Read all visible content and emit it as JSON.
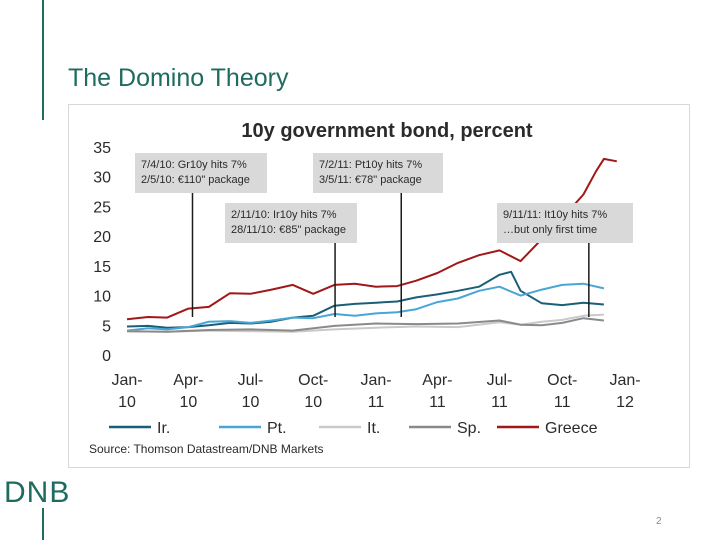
{
  "slide": {
    "title": "The Domino Theory",
    "logo": "DNB",
    "page_number": "2"
  },
  "colors": {
    "accent": "#1f6b5f",
    "ir": "#1a5f78",
    "pt": "#49a6d4",
    "it": "#c9c9c9",
    "sp": "#8a8a8a",
    "greece": "#a01818",
    "annotation_bg": "#d9d9d9"
  },
  "chart_data": {
    "type": "line",
    "title": "10y government bond, percent",
    "source": "Source: Thomson Datastream/DNB Markets",
    "ylim": [
      0,
      35
    ],
    "yticks": [
      0,
      5,
      10,
      15,
      20,
      25,
      30,
      35
    ],
    "xlim": [
      "2010-01-01",
      "2012-01-01"
    ],
    "xticks": [
      {
        "date": "2010-01-01",
        "l1": "Jan-",
        "l2": "10"
      },
      {
        "date": "2010-04-01",
        "l1": "Apr-",
        "l2": "10"
      },
      {
        "date": "2010-07-01",
        "l1": "Jul-",
        "l2": "10"
      },
      {
        "date": "2010-10-01",
        "l1": "Oct-",
        "l2": "10"
      },
      {
        "date": "2011-01-01",
        "l1": "Jan-",
        "l2": "11"
      },
      {
        "date": "2011-04-01",
        "l1": "Apr-",
        "l2": "11"
      },
      {
        "date": "2011-07-01",
        "l1": "Jul-",
        "l2": "11"
      },
      {
        "date": "2011-10-01",
        "l1": "Oct-",
        "l2": "11"
      },
      {
        "date": "2012-01-01",
        "l1": "Jan-",
        "l2": "12"
      }
    ],
    "grid": false,
    "legend_position": "bottom",
    "series": [
      {
        "name": "Ir.",
        "color": "#1a5f78",
        "points": [
          [
            "2010-01-01",
            4.8
          ],
          [
            "2010-02-01",
            4.9
          ],
          [
            "2010-03-01",
            4.6
          ],
          [
            "2010-04-01",
            4.7
          ],
          [
            "2010-05-01",
            5.0
          ],
          [
            "2010-06-01",
            5.4
          ],
          [
            "2010-07-01",
            5.3
          ],
          [
            "2010-08-01",
            5.6
          ],
          [
            "2010-09-01",
            6.3
          ],
          [
            "2010-10-01",
            6.6
          ],
          [
            "2010-11-01",
            8.3
          ],
          [
            "2010-12-01",
            8.6
          ],
          [
            "2011-01-01",
            8.8
          ],
          [
            "2011-02-01",
            9.0
          ],
          [
            "2011-03-01",
            9.7
          ],
          [
            "2011-04-01",
            10.2
          ],
          [
            "2011-05-01",
            10.8
          ],
          [
            "2011-06-01",
            11.5
          ],
          [
            "2011-07-01",
            13.5
          ],
          [
            "2011-07-18",
            14.0
          ],
          [
            "2011-08-01",
            10.8
          ],
          [
            "2011-09-01",
            8.7
          ],
          [
            "2011-10-01",
            8.4
          ],
          [
            "2011-11-01",
            8.8
          ],
          [
            "2011-12-01",
            8.5
          ]
        ]
      },
      {
        "name": "Pt.",
        "color": "#49a6d4",
        "points": [
          [
            "2010-01-01",
            4.1
          ],
          [
            "2010-02-01",
            4.5
          ],
          [
            "2010-03-01",
            4.3
          ],
          [
            "2010-04-01",
            4.7
          ],
          [
            "2010-05-01",
            5.6
          ],
          [
            "2010-06-01",
            5.7
          ],
          [
            "2010-07-01",
            5.4
          ],
          [
            "2010-08-01",
            5.8
          ],
          [
            "2010-09-01",
            6.3
          ],
          [
            "2010-10-01",
            6.2
          ],
          [
            "2010-11-01",
            6.9
          ],
          [
            "2010-12-01",
            6.6
          ],
          [
            "2011-01-01",
            7.0
          ],
          [
            "2011-02-01",
            7.2
          ],
          [
            "2011-03-01",
            7.7
          ],
          [
            "2011-04-01",
            8.9
          ],
          [
            "2011-05-01",
            9.5
          ],
          [
            "2011-06-01",
            10.8
          ],
          [
            "2011-07-01",
            11.5
          ],
          [
            "2011-08-01",
            10.0
          ],
          [
            "2011-09-01",
            11.0
          ],
          [
            "2011-10-01",
            11.8
          ],
          [
            "2011-11-01",
            12.0
          ],
          [
            "2011-12-01",
            11.2
          ]
        ]
      },
      {
        "name": "It.",
        "color": "#c9c9c9",
        "points": [
          [
            "2010-01-01",
            4.0
          ],
          [
            "2010-03-01",
            3.9
          ],
          [
            "2010-05-01",
            4.1
          ],
          [
            "2010-07-01",
            4.0
          ],
          [
            "2010-09-01",
            3.9
          ],
          [
            "2010-11-01",
            4.3
          ],
          [
            "2011-01-01",
            4.6
          ],
          [
            "2011-03-01",
            4.8
          ],
          [
            "2011-05-01",
            4.7
          ],
          [
            "2011-07-01",
            5.5
          ],
          [
            "2011-08-01",
            5.1
          ],
          [
            "2011-09-01",
            5.6
          ],
          [
            "2011-10-01",
            5.9
          ],
          [
            "2011-11-01",
            6.6
          ],
          [
            "2011-12-01",
            6.8
          ]
        ]
      },
      {
        "name": "Sp.",
        "color": "#8a8a8a",
        "points": [
          [
            "2010-01-01",
            4.0
          ],
          [
            "2010-03-01",
            3.9
          ],
          [
            "2010-05-01",
            4.2
          ],
          [
            "2010-07-01",
            4.3
          ],
          [
            "2010-09-01",
            4.1
          ],
          [
            "2010-11-01",
            4.9
          ],
          [
            "2011-01-01",
            5.3
          ],
          [
            "2011-03-01",
            5.2
          ],
          [
            "2011-05-01",
            5.3
          ],
          [
            "2011-07-01",
            5.8
          ],
          [
            "2011-08-01",
            5.1
          ],
          [
            "2011-09-01",
            5.0
          ],
          [
            "2011-10-01",
            5.4
          ],
          [
            "2011-11-01",
            6.2
          ],
          [
            "2011-12-01",
            5.8
          ]
        ]
      },
      {
        "name": "Greece",
        "color": "#a01818",
        "points": [
          [
            "2010-01-01",
            6.0
          ],
          [
            "2010-02-01",
            6.4
          ],
          [
            "2010-03-01",
            6.3
          ],
          [
            "2010-04-01",
            7.8
          ],
          [
            "2010-05-01",
            8.1
          ],
          [
            "2010-06-01",
            10.4
          ],
          [
            "2010-07-01",
            10.3
          ],
          [
            "2010-08-01",
            11.0
          ],
          [
            "2010-09-01",
            11.8
          ],
          [
            "2010-10-01",
            10.3
          ],
          [
            "2010-11-01",
            11.8
          ],
          [
            "2010-12-01",
            12.0
          ],
          [
            "2011-01-01",
            11.5
          ],
          [
            "2011-02-01",
            11.6
          ],
          [
            "2011-03-01",
            12.5
          ],
          [
            "2011-04-01",
            13.8
          ],
          [
            "2011-05-01",
            15.5
          ],
          [
            "2011-06-01",
            16.8
          ],
          [
            "2011-07-01",
            17.6
          ],
          [
            "2011-08-01",
            15.8
          ],
          [
            "2011-09-01",
            19.5
          ],
          [
            "2011-10-01",
            23.0
          ],
          [
            "2011-11-01",
            27.0
          ],
          [
            "2011-11-20",
            31.0
          ],
          [
            "2011-12-01",
            33.0
          ],
          [
            "2011-12-20",
            32.6
          ]
        ]
      }
    ],
    "annotations": [
      {
        "lines": [
          "7/4/10: Gr10y hits 7%",
          "2/5/10: €110\" package"
        ],
        "date": "2010-04-07"
      },
      {
        "lines": [
          "7/2/11: Pt10y hits 7%",
          "3/5/11: €78\" package"
        ],
        "date": "2011-02-07"
      },
      {
        "lines": [
          "2/11/10: Ir10y hits 7%",
          "28/11/10: €85\" package"
        ],
        "date": "2010-11-02"
      },
      {
        "lines": [
          "9/11/11: It10y hits 7%",
          "…but only first time"
        ],
        "date": "2011-11-09"
      }
    ]
  }
}
